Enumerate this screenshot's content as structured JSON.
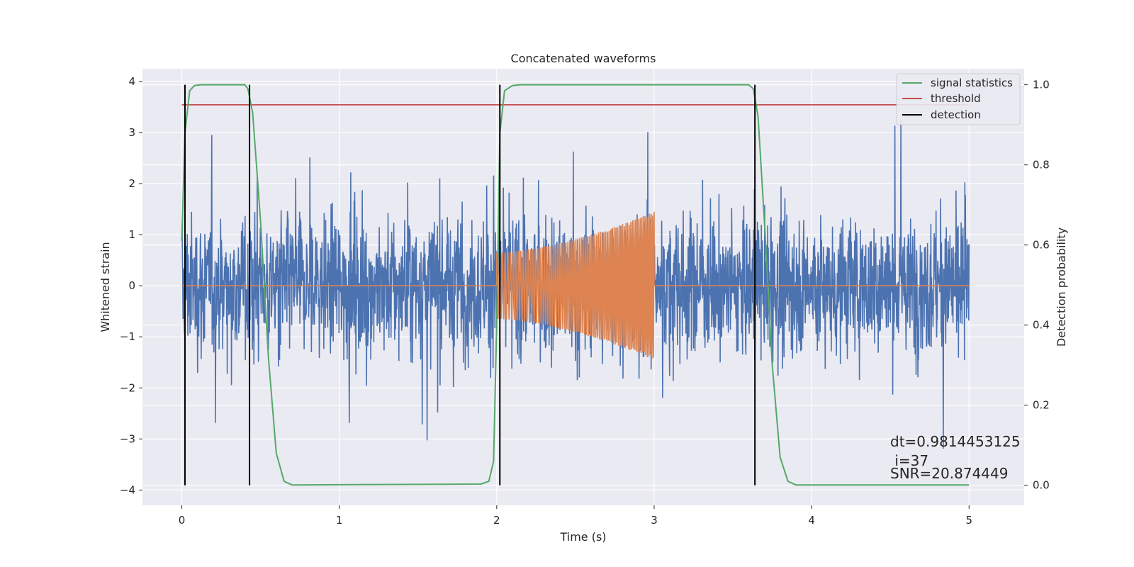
{
  "chart_data": {
    "type": "line",
    "title": "Concatenated waveforms",
    "xlabel": "Time (s)",
    "ylabel_left": "Whitened strain",
    "ylabel_right": "Detection probability",
    "xlim": [
      -0.25,
      5.35
    ],
    "ylim_left": [
      -4.3,
      4.25
    ],
    "ylim_right": [
      -0.05,
      1.04
    ],
    "x_ticks": [
      0,
      1,
      2,
      3,
      4,
      5
    ],
    "y_ticks_left": [
      -4,
      -3,
      -2,
      -1,
      0,
      1,
      2,
      3,
      4
    ],
    "y_ticks_right": [
      0.0,
      0.2,
      0.4,
      0.6,
      0.8,
      1.0
    ],
    "y_tick_labels_right": [
      "0.0",
      "0.2",
      "0.4",
      "0.6",
      "0.8",
      "1.0"
    ],
    "grid": true,
    "legend_position": "top-right",
    "colors": {
      "background": "#eaeaf2",
      "grid": "#ffffff",
      "noise": "#4c72b0",
      "waveform": "#dd8452",
      "signal_statistics": "#55a868",
      "threshold": "#c44e52",
      "detection": "#000000"
    },
    "series": [
      {
        "name": "signal statistics",
        "axis": "right",
        "x": [
          0,
          0.02,
          0.05,
          0.08,
          0.12,
          0.4,
          0.42,
          0.45,
          0.5,
          0.55,
          0.6,
          0.65,
          0.7,
          1.9,
          1.95,
          1.98,
          2.0,
          2.02,
          2.05,
          2.1,
          2.15,
          2.2,
          3.6,
          3.63,
          3.66,
          3.7,
          3.75,
          3.8,
          3.85,
          3.9,
          5.0
        ],
        "values": [
          0.61,
          0.88,
          0.985,
          0.998,
          1.0,
          1.0,
          0.99,
          0.93,
          0.66,
          0.32,
          0.08,
          0.01,
          0.001,
          0.003,
          0.01,
          0.06,
          0.4,
          0.88,
          0.985,
          0.998,
          1.0,
          1.0,
          1.0,
          0.99,
          0.92,
          0.66,
          0.3,
          0.07,
          0.01,
          0.001,
          0.001
        ]
      },
      {
        "name": "threshold",
        "axis": "right",
        "x": [
          0,
          5
        ],
        "values": [
          0.95,
          0.95
        ]
      },
      {
        "name": "detection",
        "axis": "right",
        "x": [
          0.02,
          0.43,
          2.02,
          3.64
        ],
        "values": [
          1,
          1,
          1,
          1
        ]
      },
      {
        "name": "",
        "axis": "left",
        "description_values": "whitened noise, roughly between -2.5 and 2.5 with peaks to about ±3.8, x from 0 to 5",
        "x": [
          0,
          5
        ],
        "values": [
          0,
          0
        ]
      },
      {
        "name": "",
        "axis": "left",
        "x": [
          0,
          2.0,
          2.0,
          2.5,
          3.0,
          3.0,
          5.0
        ],
        "values": [
          0,
          0,
          0.65,
          0.9,
          1.45,
          0,
          0
        ]
      }
    ]
  },
  "annotations": {
    "dt": "dt=0.9814453125",
    "i": " i=37",
    "snr": "SNR=20.874449"
  }
}
